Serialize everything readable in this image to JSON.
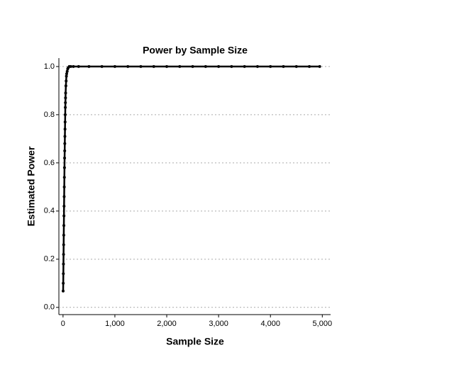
{
  "chart_data": {
    "type": "line",
    "title": "Power by Sample Size",
    "x_label": "Sample Size",
    "y_label": "Estimated Power",
    "x": [
      2,
      4,
      6,
      8,
      10,
      12,
      14,
      16,
      18,
      20,
      22,
      24,
      26,
      28,
      30,
      32,
      34,
      36,
      38,
      40,
      42,
      44,
      46,
      48,
      50,
      55,
      60,
      65,
      70,
      80,
      90,
      100,
      120,
      150,
      200,
      300,
      500,
      750,
      1000,
      1250,
      1500,
      1750,
      2000,
      2250,
      2500,
      2750,
      3000,
      3250,
      3500,
      3750,
      4000,
      4250,
      4500,
      4750,
      4950
    ],
    "series": [
      {
        "name": "Estimated Power",
        "color": "#000000",
        "values": [
          0.068,
          0.1,
          0.14,
          0.18,
          0.22,
          0.26,
          0.3,
          0.34,
          0.38,
          0.42,
          0.46,
          0.5,
          0.54,
          0.58,
          0.62,
          0.65,
          0.68,
          0.71,
          0.74,
          0.77,
          0.8,
          0.83,
          0.85,
          0.87,
          0.89,
          0.92,
          0.94,
          0.96,
          0.97,
          0.98,
          0.99,
          0.995,
          1.0,
          1.0,
          1.0,
          1.0,
          1.0,
          1.0,
          1.0,
          1.0,
          1.0,
          1.0,
          1.0,
          1.0,
          1.0,
          1.0,
          1.0,
          1.0,
          1.0,
          1.0,
          1.0,
          1.0,
          1.0,
          1.0,
          1.0
        ]
      }
    ],
    "xlim": [
      -80,
      5160
    ],
    "xticks": [
      0,
      {
        "value": 1000,
        "label": "1,000"
      },
      {
        "value": 2000,
        "label": "2,000"
      },
      {
        "value": 3000,
        "label": "3,000"
      },
      {
        "value": 4000,
        "label": "4,000"
      },
      {
        "value": 5000,
        "label": "5,000"
      }
    ],
    "ylim": [
      -0.03,
      1.035
    ],
    "yticks": [
      {
        "value": 0,
        "label": "0.0"
      },
      0.2,
      0.4,
      0.6,
      0.8,
      {
        "value": 1,
        "label": "1.0"
      }
    ],
    "grid": true
  }
}
